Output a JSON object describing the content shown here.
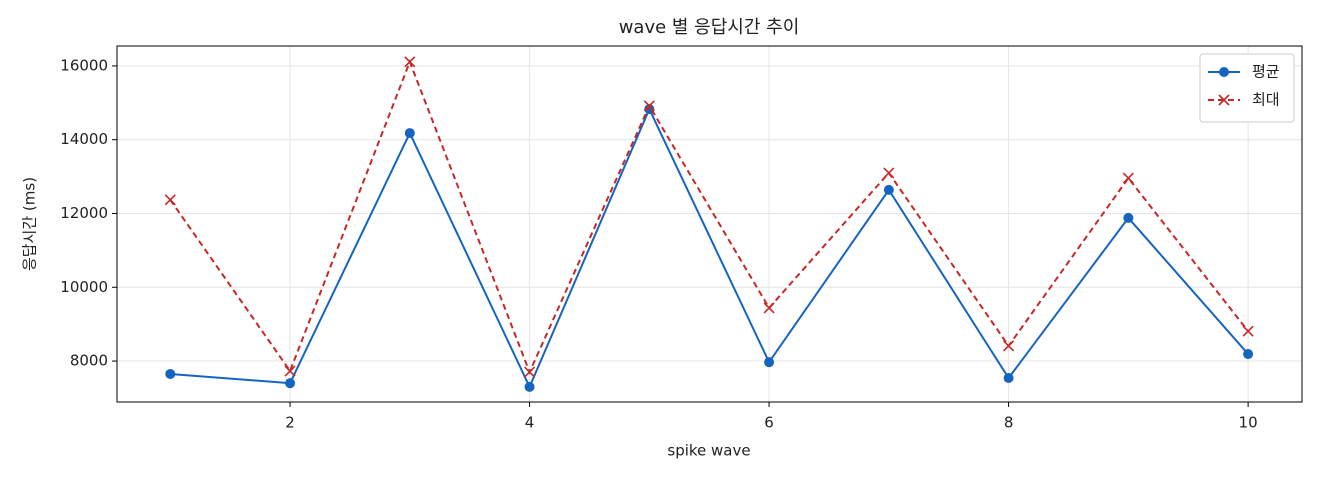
{
  "chart_data": {
    "type": "line",
    "title": "wave 별 응답시간 추이",
    "xlabel": "spike wave",
    "ylabel": "응답시간 (ms)",
    "x": [
      1,
      2,
      3,
      4,
      5,
      6,
      7,
      8,
      9,
      10
    ],
    "series": [
      {
        "name": "평균",
        "color": "#1565c0",
        "marker": "o",
        "linestyle": "solid",
        "values": [
          7650,
          7400,
          14180,
          7300,
          14830,
          7970,
          12640,
          7540,
          11880,
          8190
        ]
      },
      {
        "name": "최대",
        "color": "#c62828",
        "marker": "x",
        "linestyle": "dashed",
        "values": [
          12370,
          7730,
          16110,
          7700,
          14920,
          9440,
          13100,
          8410,
          12960,
          8810
        ]
      }
    ],
    "xlim": [
      0.555,
      10.45
    ],
    "xticks": [
      2,
      4,
      6,
      8,
      10
    ],
    "ylim": [
      6890,
      16540
    ],
    "yticks": [
      8000,
      10000,
      12000,
      14000,
      16000
    ],
    "grid": true,
    "legend": "upper right"
  }
}
